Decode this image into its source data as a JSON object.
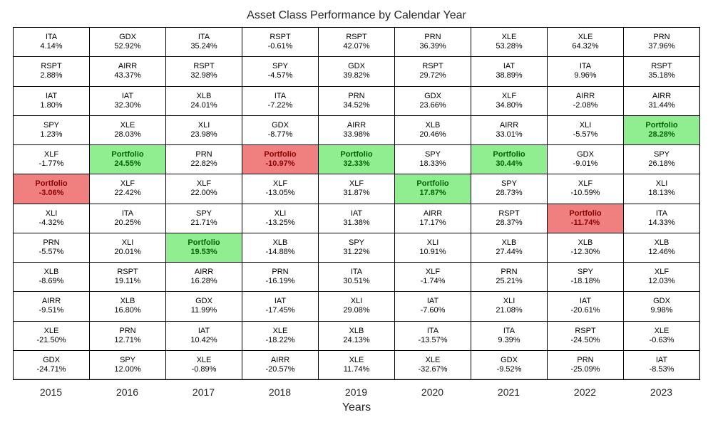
{
  "chart_data": {
    "type": "table",
    "title": "Asset Class Performance by Calendar Year",
    "xlabel": "Years",
    "highlight_colors": {
      "positive_fill": "#90ee90",
      "positive_text": "#006400",
      "negative_fill": "#f08080",
      "negative_text": "#8b0000"
    },
    "years": [
      "2015",
      "2016",
      "2017",
      "2018",
      "2019",
      "2020",
      "2021",
      "2022",
      "2023"
    ],
    "columns": [
      [
        [
          "ITA",
          "4.14%"
        ],
        [
          "RSPT",
          "2.88%"
        ],
        [
          "IAT",
          "1.80%"
        ],
        [
          "SPY",
          "1.23%"
        ],
        [
          "XLF",
          "-1.77%"
        ],
        [
          "Portfolio",
          "-3.06%"
        ],
        [
          "XLI",
          "-4.32%"
        ],
        [
          "PRN",
          "-5.57%"
        ],
        [
          "XLB",
          "-8.69%"
        ],
        [
          "AIRR",
          "-9.51%"
        ],
        [
          "XLE",
          "-21.50%"
        ],
        [
          "GDX",
          "-24.71%"
        ]
      ],
      [
        [
          "GDX",
          "52.92%"
        ],
        [
          "AIRR",
          "43.37%"
        ],
        [
          "IAT",
          "32.30%"
        ],
        [
          "XLE",
          "28.03%"
        ],
        [
          "Portfolio",
          "24.55%"
        ],
        [
          "XLF",
          "22.42%"
        ],
        [
          "ITA",
          "20.25%"
        ],
        [
          "XLI",
          "20.01%"
        ],
        [
          "RSPT",
          "19.11%"
        ],
        [
          "XLB",
          "16.80%"
        ],
        [
          "PRN",
          "12.71%"
        ],
        [
          "SPY",
          "12.00%"
        ]
      ],
      [
        [
          "ITA",
          "35.24%"
        ],
        [
          "RSPT",
          "32.98%"
        ],
        [
          "XLB",
          "24.01%"
        ],
        [
          "XLI",
          "23.98%"
        ],
        [
          "PRN",
          "22.82%"
        ],
        [
          "XLF",
          "22.00%"
        ],
        [
          "SPY",
          "21.71%"
        ],
        [
          "Portfolio",
          "19.53%"
        ],
        [
          "AIRR",
          "16.28%"
        ],
        [
          "GDX",
          "11.99%"
        ],
        [
          "IAT",
          "10.42%"
        ],
        [
          "XLE",
          "-0.89%"
        ]
      ],
      [
        [
          "RSPT",
          "-0.61%"
        ],
        [
          "SPY",
          "-4.57%"
        ],
        [
          "ITA",
          "-7.22%"
        ],
        [
          "GDX",
          "-8.77%"
        ],
        [
          "Portfolio",
          "-10.97%"
        ],
        [
          "XLF",
          "-13.05%"
        ],
        [
          "XLI",
          "-13.25%"
        ],
        [
          "XLB",
          "-14.88%"
        ],
        [
          "PRN",
          "-16.19%"
        ],
        [
          "IAT",
          "-17.45%"
        ],
        [
          "XLE",
          "-18.22%"
        ],
        [
          "AIRR",
          "-20.57%"
        ]
      ],
      [
        [
          "RSPT",
          "42.07%"
        ],
        [
          "GDX",
          "39.82%"
        ],
        [
          "PRN",
          "34.52%"
        ],
        [
          "AIRR",
          "33.98%"
        ],
        [
          "Portfolio",
          "32.33%"
        ],
        [
          "XLF",
          "31.87%"
        ],
        [
          "IAT",
          "31.38%"
        ],
        [
          "SPY",
          "31.22%"
        ],
        [
          "ITA",
          "30.51%"
        ],
        [
          "XLI",
          "29.08%"
        ],
        [
          "XLB",
          "24.13%"
        ],
        [
          "XLE",
          "11.74%"
        ]
      ],
      [
        [
          "PRN",
          "36.39%"
        ],
        [
          "RSPT",
          "29.72%"
        ],
        [
          "GDX",
          "23.66%"
        ],
        [
          "XLB",
          "20.46%"
        ],
        [
          "SPY",
          "18.33%"
        ],
        [
          "Portfolio",
          "17.87%"
        ],
        [
          "AIRR",
          "17.17%"
        ],
        [
          "XLI",
          "10.91%"
        ],
        [
          "XLF",
          "-1.74%"
        ],
        [
          "IAT",
          "-7.60%"
        ],
        [
          "ITA",
          "-13.57%"
        ],
        [
          "XLE",
          "-32.67%"
        ]
      ],
      [
        [
          "XLE",
          "53.28%"
        ],
        [
          "IAT",
          "38.89%"
        ],
        [
          "XLF",
          "34.80%"
        ],
        [
          "AIRR",
          "33.01%"
        ],
        [
          "Portfolio",
          "30.44%"
        ],
        [
          "SPY",
          "28.73%"
        ],
        [
          "RSPT",
          "28.37%"
        ],
        [
          "XLB",
          "27.44%"
        ],
        [
          "PRN",
          "25.21%"
        ],
        [
          "XLI",
          "21.08%"
        ],
        [
          "ITA",
          "9.39%"
        ],
        [
          "GDX",
          "-9.52%"
        ]
      ],
      [
        [
          "XLE",
          "64.32%"
        ],
        [
          "ITA",
          "9.96%"
        ],
        [
          "AIRR",
          "-2.08%"
        ],
        [
          "XLI",
          "-5.57%"
        ],
        [
          "GDX",
          "-9.01%"
        ],
        [
          "XLF",
          "-10.59%"
        ],
        [
          "Portfolio",
          "-11.74%"
        ],
        [
          "XLB",
          "-12.30%"
        ],
        [
          "SPY",
          "-18.18%"
        ],
        [
          "IAT",
          "-20.61%"
        ],
        [
          "RSPT",
          "-24.50%"
        ],
        [
          "PRN",
          "-25.09%"
        ]
      ],
      [
        [
          "PRN",
          "37.96%"
        ],
        [
          "RSPT",
          "35.18%"
        ],
        [
          "AIRR",
          "31.44%"
        ],
        [
          "Portfolio",
          "28.28%"
        ],
        [
          "SPY",
          "26.18%"
        ],
        [
          "XLI",
          "18.13%"
        ],
        [
          "ITA",
          "14.33%"
        ],
        [
          "XLB",
          "12.46%"
        ],
        [
          "XLF",
          "12.03%"
        ],
        [
          "GDX",
          "9.98%"
        ],
        [
          "XLE",
          "-0.63%"
        ],
        [
          "IAT",
          "-8.53%"
        ]
      ]
    ]
  }
}
